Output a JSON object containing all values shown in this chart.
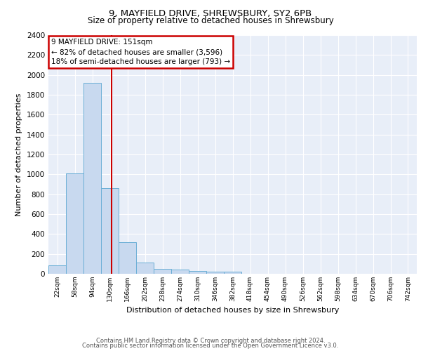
{
  "title1": "9, MAYFIELD DRIVE, SHREWSBURY, SY2 6PB",
  "title2": "Size of property relative to detached houses in Shrewsbury",
  "xlabel": "Distribution of detached houses by size in Shrewsbury",
  "ylabel": "Number of detached properties",
  "bin_labels": [
    "22sqm",
    "58sqm",
    "94sqm",
    "130sqm",
    "166sqm",
    "202sqm",
    "238sqm",
    "274sqm",
    "310sqm",
    "346sqm",
    "382sqm",
    "418sqm",
    "454sqm",
    "490sqm",
    "526sqm",
    "562sqm",
    "598sqm",
    "634sqm",
    "670sqm",
    "706sqm",
    "742sqm"
  ],
  "bar_values": [
    85,
    1010,
    1920,
    860,
    320,
    115,
    50,
    45,
    30,
    20,
    20,
    0,
    0,
    0,
    0,
    0,
    0,
    0,
    0,
    0,
    0
  ],
  "bar_color": "#c8d9ef",
  "bar_edge_color": "#6aaed6",
  "property_sqm": 151,
  "annotation_text_line1": "9 MAYFIELD DRIVE: 151sqm",
  "annotation_text_line2": "← 82% of detached houses are smaller (3,596)",
  "annotation_text_line3": "18% of semi-detached houses are larger (793) →",
  "annotation_box_color": "#ffffff",
  "annotation_border_color": "#cc0000",
  "ylim_max": 2400,
  "yticks": [
    0,
    200,
    400,
    600,
    800,
    1000,
    1200,
    1400,
    1600,
    1800,
    2000,
    2200,
    2400
  ],
  "bg_color": "#e8eef8",
  "grid_color": "#ffffff",
  "footer_line1": "Contains HM Land Registry data © Crown copyright and database right 2024.",
  "footer_line2": "Contains public sector information licensed under the Open Government Licence v3.0."
}
